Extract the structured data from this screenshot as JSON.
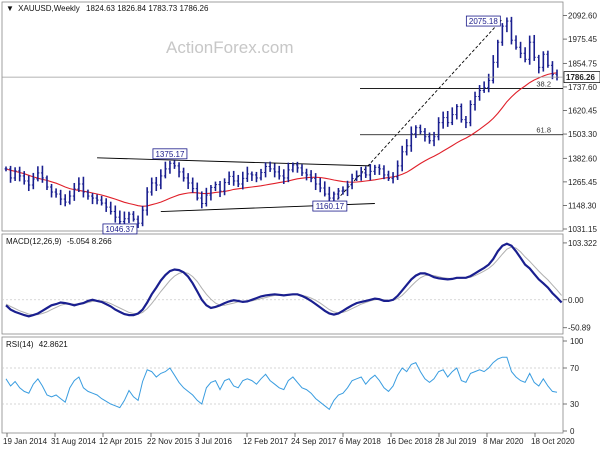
{
  "header": {
    "symbol": "XAUUSD,Weekly",
    "ohlc": "1824.63 1826.84 1783.73 1786.26"
  },
  "watermark": "ActionForex.com",
  "colors": {
    "price": "#1a1f8f",
    "ema": "#e0202a",
    "macd": "#1a1f8f",
    "signal": "#b0b0b0",
    "rsi": "#3a9de0",
    "grid": "#bbbbbb",
    "trendline": "#000000"
  },
  "chart_data": [
    {
      "type": "line",
      "pane": "price",
      "title": "",
      "ylim": [
        1031.15,
        2150
      ],
      "yticks": [
        2092.6,
        1975.45,
        1854.75,
        1737.6,
        1620.45,
        1503.3,
        1382.6,
        1265.45,
        1148.3,
        1031.15
      ],
      "current_price": "1786.26",
      "xticks": [
        "19 Jan 2014",
        "31 Aug 2014",
        "12 Apr 2015",
        "22 Nov 2015",
        "3 Jul 2016",
        "12 Feb 2017",
        "24 Sep 2017",
        "6 May 2018",
        "16 Dec 2018",
        "28 Jul 2019",
        "8 Mar 2020",
        "18 Oct 2020"
      ],
      "series": [
        {
          "role": "price",
          "values": [
            1330,
            1285,
            1320,
            1295,
            1270,
            1250,
            1280,
            1310,
            1285,
            1240,
            1215,
            1205,
            1180,
            1165,
            1195,
            1230,
            1255,
            1215,
            1195,
            1185,
            1175,
            1160,
            1140,
            1118,
            1090,
            1068,
            1082,
            1105,
            1080,
            1060,
            1125,
            1215,
            1260,
            1250,
            1295,
            1330,
            1358,
            1345,
            1315,
            1285,
            1260,
            1232,
            1185,
            1158,
            1200,
            1238,
            1252,
            1220,
            1262,
            1293,
            1270,
            1255,
            1283,
            1305,
            1300,
            1285,
            1312,
            1342,
            1330,
            1315,
            1295,
            1285,
            1325,
            1350,
            1335,
            1310,
            1300,
            1282,
            1255,
            1235,
            1205,
            1185,
            1205,
            1220,
            1225,
            1250,
            1282,
            1295,
            1310,
            1300,
            1318,
            1338,
            1330,
            1300,
            1282,
            1290,
            1345,
            1415,
            1445,
            1505,
            1535,
            1515,
            1490,
            1470,
            1490,
            1560,
            1585,
            1560,
            1600,
            1640,
            1575,
            1560,
            1650,
            1690,
            1720,
            1735,
            1770,
            1860,
            1960,
            2040,
            2065,
            1970,
            1935,
            1905,
            1875,
            1960,
            1885,
            1835,
            1900,
            1845,
            1800,
            1785
          ]
        },
        {
          "role": "ema",
          "values": [
            1330,
            1323,
            1318,
            1312,
            1306,
            1298,
            1290,
            1284,
            1278,
            1273,
            1266,
            1259,
            1250,
            1240,
            1232,
            1227,
            1223,
            1219,
            1215,
            1210,
            1205,
            1200,
            1194,
            1187,
            1180,
            1172,
            1164,
            1158,
            1153,
            1147,
            1144,
            1146,
            1152,
            1158,
            1165,
            1174,
            1184,
            1193,
            1201,
            1206,
            1210,
            1212,
            1211,
            1208,
            1207,
            1209,
            1213,
            1215,
            1218,
            1222,
            1228,
            1231,
            1234,
            1237,
            1240,
            1243,
            1246,
            1250,
            1254,
            1258,
            1262,
            1266,
            1270,
            1276,
            1281,
            1284,
            1286,
            1288,
            1288,
            1287,
            1284,
            1280,
            1275,
            1271,
            1267,
            1265,
            1264,
            1265,
            1267,
            1270,
            1273,
            1276,
            1280,
            1284,
            1287,
            1290,
            1295,
            1303,
            1313,
            1327,
            1342,
            1357,
            1370,
            1382,
            1393,
            1405,
            1419,
            1432,
            1446,
            1460,
            1472,
            1483,
            1496,
            1511,
            1527,
            1544,
            1561,
            1581,
            1606,
            1635,
            1664,
            1688,
            1709,
            1727,
            1742,
            1759,
            1772,
            1782,
            1792,
            1800,
            1805,
            1808
          ]
        }
      ],
      "annotations": [
        {
          "text": "2075.18",
          "x_index": 109,
          "y": 2075.18
        },
        {
          "text": "1375.17",
          "x_index": 36,
          "y": 1375.17
        },
        {
          "text": "1160.17",
          "x_index": 72,
          "y": 1160.17
        },
        {
          "text": "1046.37",
          "x_index": 27,
          "y": 1046.37
        }
      ],
      "fib_levels": [
        {
          "text": "38.2",
          "y": 1730
        },
        {
          "text": "61.8",
          "y": 1500
        }
      ],
      "trendlines": [
        {
          "x_index": [
            20,
            80
          ],
          "y": [
            1385,
            1345
          ]
        },
        {
          "x_index": [
            34,
            81
          ],
          "y": [
            1118,
            1158
          ]
        },
        {
          "x_index": [
            72,
            109
          ],
          "y": [
            1160,
            2075
          ],
          "dashed": true
        }
      ]
    },
    {
      "type": "line",
      "pane": "macd",
      "label": "MACD(12,26,9)",
      "last_values": "-5.054 8.266",
      "ylim": [
        -50.89,
        103.322
      ],
      "yticks": [
        103.322,
        0.0,
        -50.89
      ],
      "series": [
        {
          "role": "macd",
          "values": [
            -10,
            -18,
            -22,
            -25,
            -28,
            -30,
            -28,
            -25,
            -20,
            -15,
            -10,
            -8,
            -5,
            -6,
            -8,
            -10,
            -8,
            -6,
            -2,
            0,
            -2,
            -4,
            -8,
            -12,
            -18,
            -22,
            -26,
            -28,
            -28,
            -25,
            -18,
            -5,
            10,
            22,
            35,
            45,
            52,
            55,
            54,
            50,
            42,
            30,
            15,
            0,
            -10,
            -15,
            -13,
            -10,
            -6,
            -3,
            -1,
            -2,
            -4,
            -3,
            0,
            3,
            6,
            8,
            9,
            10,
            9,
            8,
            9,
            10,
            10,
            7,
            3,
            -2,
            -8,
            -14,
            -20,
            -25,
            -27,
            -25,
            -20,
            -15,
            -10,
            -6,
            -4,
            -2,
            0,
            2,
            1,
            -2,
            -2,
            0,
            7,
            17,
            27,
            37,
            44,
            48,
            48,
            45,
            41,
            39,
            38,
            37,
            38,
            40,
            40,
            40,
            43,
            48,
            53,
            58,
            64,
            74,
            88,
            98,
            102,
            98,
            88,
            76,
            64,
            57,
            47,
            37,
            30,
            22,
            12,
            4,
            -5
          ]
        },
        {
          "role": "signal",
          "values": [
            -8,
            -12,
            -16,
            -20,
            -23,
            -26,
            -27,
            -27,
            -25,
            -22,
            -18,
            -14,
            -10,
            -8,
            -8,
            -8,
            -8,
            -7,
            -5,
            -3,
            -2,
            -2,
            -4,
            -7,
            -11,
            -15,
            -19,
            -23,
            -25,
            -26,
            -23,
            -16,
            -7,
            4,
            15,
            25,
            35,
            43,
            48,
            50,
            48,
            42,
            33,
            21,
            10,
            1,
            -6,
            -10,
            -10,
            -8,
            -6,
            -4,
            -3,
            -3,
            -2,
            0,
            2,
            4,
            6,
            8,
            8,
            8,
            8,
            9,
            9,
            8,
            6,
            3,
            -1,
            -6,
            -12,
            -18,
            -22,
            -24,
            -23,
            -20,
            -16,
            -12,
            -8,
            -5,
            -2,
            0,
            1,
            0,
            -1,
            -1,
            2,
            8,
            16,
            25,
            33,
            40,
            44,
            45,
            44,
            42,
            40,
            39,
            38,
            39,
            39,
            40,
            41,
            44,
            48,
            52,
            57,
            64,
            73,
            83,
            92,
            96,
            94,
            87,
            78,
            70,
            61,
            52,
            44,
            36,
            27,
            18,
            8
          ]
        }
      ]
    },
    {
      "type": "line",
      "pane": "rsi",
      "label": "RSI(14)",
      "last_value": "42.8621",
      "ylim": [
        0,
        100
      ],
      "yticks": [
        100,
        70,
        30,
        0
      ],
      "yticklabels": [
        "100",
        "70",
        "30",
        "0"
      ],
      "series": [
        {
          "role": "rsi",
          "values": [
            58,
            50,
            55,
            48,
            44,
            42,
            52,
            58,
            50,
            40,
            38,
            40,
            36,
            32,
            48,
            56,
            60,
            48,
            44,
            42,
            40,
            36,
            33,
            30,
            28,
            26,
            34,
            45,
            38,
            34,
            55,
            68,
            66,
            60,
            64,
            66,
            70,
            62,
            54,
            48,
            44,
            40,
            34,
            30,
            48,
            54,
            56,
            46,
            56,
            58,
            50,
            48,
            56,
            58,
            56,
            52,
            58,
            63,
            56,
            52,
            48,
            46,
            56,
            60,
            54,
            48,
            46,
            42,
            36,
            32,
            28,
            24,
            34,
            40,
            42,
            48,
            56,
            58,
            60,
            52,
            58,
            62,
            56,
            48,
            44,
            50,
            62,
            70,
            66,
            74,
            76,
            66,
            58,
            54,
            58,
            66,
            68,
            60,
            66,
            70,
            56,
            54,
            64,
            66,
            68,
            66,
            70,
            76,
            80,
            82,
            82,
            66,
            60,
            56,
            54,
            64,
            54,
            50,
            58,
            50,
            44,
            43
          ]
        }
      ]
    }
  ]
}
